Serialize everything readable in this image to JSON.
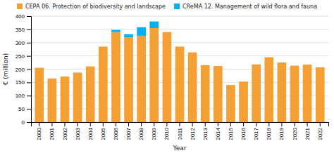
{
  "chart_data": {
    "type": "bar",
    "stacked": true,
    "categories": [
      "2000",
      "2001",
      "2002",
      "2003",
      "2004",
      "2005",
      "2006",
      "2007",
      "2008",
      "2009",
      "2010",
      "2011",
      "2012",
      "2013",
      "2014",
      "2015",
      "2016",
      "2017",
      "2018",
      "2019",
      "2020",
      "2021",
      "2022"
    ],
    "series": [
      {
        "name": "CEPA 06. Protection of biodiversity and landscape",
        "color": "#f4a034",
        "values": [
          205,
          165,
          172,
          187,
          210,
          285,
          340,
          320,
          325,
          355,
          340,
          285,
          263,
          215,
          212,
          140,
          153,
          218,
          245,
          225,
          213,
          217,
          207
        ]
      },
      {
        "name": "CReMA 12. Management of wild flora and fauna",
        "color": "#00b0f0",
        "values": [
          0,
          0,
          0,
          0,
          0,
          0,
          8,
          12,
          33,
          25,
          0,
          0,
          0,
          0,
          0,
          0,
          0,
          0,
          0,
          0,
          0,
          0,
          0
        ]
      }
    ],
    "x_label": "Year",
    "y_label": "€ (million)",
    "ylim": [
      0,
      400
    ],
    "yticks": [
      0,
      50,
      100,
      150,
      200,
      250,
      300,
      350,
      400
    ],
    "grid": true,
    "legend": "top"
  }
}
